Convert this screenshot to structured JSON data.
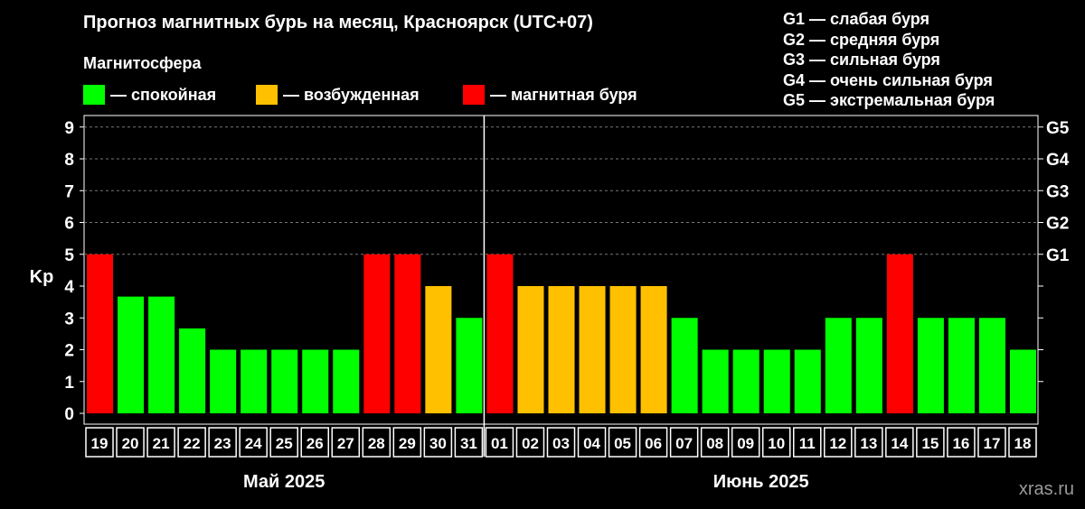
{
  "title": "Прогноз магнитных бурь на месяц, Красноярск (UTC+07)",
  "subtitle": "Магнитосфера",
  "legend": [
    {
      "label": "— спокойная",
      "color": "#00ff00"
    },
    {
      "label": "— возбужденная",
      "color": "#ffc000"
    },
    {
      "label": "— магнитная буря",
      "color": "#ff0000"
    }
  ],
  "g_legend": [
    "G1 — слабая буря",
    "G2 — средняя буря",
    "G3 — сильная буря",
    "G4 — очень сильная буря",
    "G5 — экстремальная буря"
  ],
  "watermark": "xras.ru",
  "chart_data": {
    "type": "bar",
    "ylabel": "Kp",
    "ylim": [
      0,
      9
    ],
    "yticks": [
      "0",
      "1",
      "2",
      "3",
      "4",
      "5",
      "6",
      "7",
      "8",
      "9"
    ],
    "right_ticks": [
      {
        "value": 5,
        "label": "G1"
      },
      {
        "value": 6,
        "label": "G2"
      },
      {
        "value": 7,
        "label": "G3"
      },
      {
        "value": 8,
        "label": "G4"
      },
      {
        "value": 9,
        "label": "G5"
      }
    ],
    "grid": true,
    "categories": [
      "19",
      "20",
      "21",
      "22",
      "23",
      "24",
      "25",
      "26",
      "27",
      "28",
      "29",
      "30",
      "31",
      "01",
      "02",
      "03",
      "04",
      "05",
      "06",
      "07",
      "08",
      "09",
      "10",
      "11",
      "12",
      "13",
      "14",
      "15",
      "16",
      "17",
      "18"
    ],
    "values": [
      5,
      3.67,
      3.67,
      2.67,
      2,
      2,
      2,
      2,
      2,
      5,
      5,
      4,
      3,
      5,
      4,
      4,
      4,
      4,
      4,
      3,
      2,
      2,
      2,
      2,
      3,
      3,
      5,
      3,
      3,
      3,
      2
    ],
    "status": [
      "storm",
      "quiet",
      "quiet",
      "quiet",
      "quiet",
      "quiet",
      "quiet",
      "quiet",
      "quiet",
      "storm",
      "storm",
      "active",
      "quiet",
      "storm",
      "active",
      "active",
      "active",
      "active",
      "active",
      "quiet",
      "quiet",
      "quiet",
      "quiet",
      "quiet",
      "quiet",
      "quiet",
      "storm",
      "quiet",
      "quiet",
      "quiet",
      "quiet"
    ],
    "status_colors": {
      "quiet": "#00ff00",
      "active": "#ffc000",
      "storm": "#ff0000"
    },
    "months": [
      {
        "label": "Май 2025",
        "start": 0,
        "count": 13
      },
      {
        "label": "Июнь 2025",
        "start": 13,
        "count": 18
      }
    ]
  }
}
